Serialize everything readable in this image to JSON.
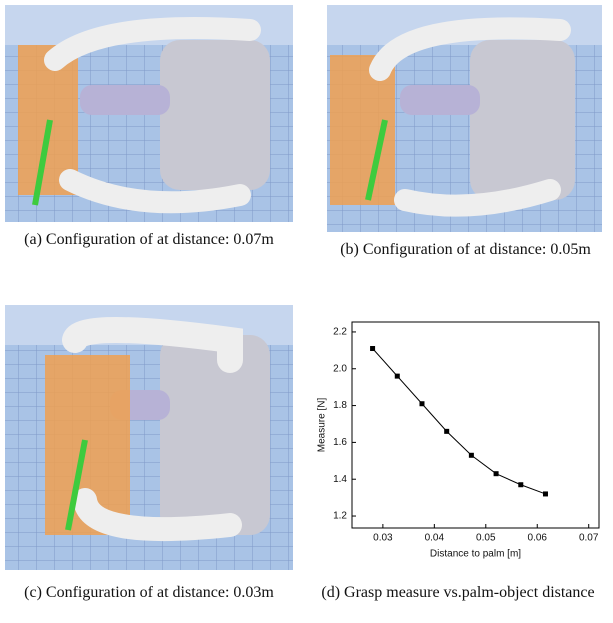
{
  "panels": [
    {
      "caption": "(a) Configuration of at distance: 0.07m"
    },
    {
      "caption": "(b) Configuration of at distance: 0.05m"
    },
    {
      "caption": "(c) Configuration of at distance: 0.03m"
    },
    {
      "caption": "(d) Grasp measure vs.palm-object distance"
    }
  ],
  "chart_data": {
    "type": "line",
    "x_label": "Distance to palm [m]",
    "y_label": "Measure [N]",
    "x": [
      0.028,
      0.0328,
      0.0376,
      0.0424,
      0.0472,
      0.052,
      0.0568,
      0.0616
    ],
    "series": [
      {
        "color": "#000000",
        "values": [
          2.11,
          1.96,
          1.81,
          1.66,
          1.53,
          1.43,
          1.37,
          1.32
        ]
      }
    ],
    "xlim": [
      0.024,
      0.072
    ],
    "xticks": [
      0.03,
      0.04,
      0.05,
      0.06,
      0.07
    ],
    "ylim": [
      1.135,
      2.254
    ],
    "yticks": [
      1.2,
      1.4,
      1.6,
      1.8,
      {
        "value": 2,
        "label": "2.0"
      },
      2.2
    ]
  }
}
